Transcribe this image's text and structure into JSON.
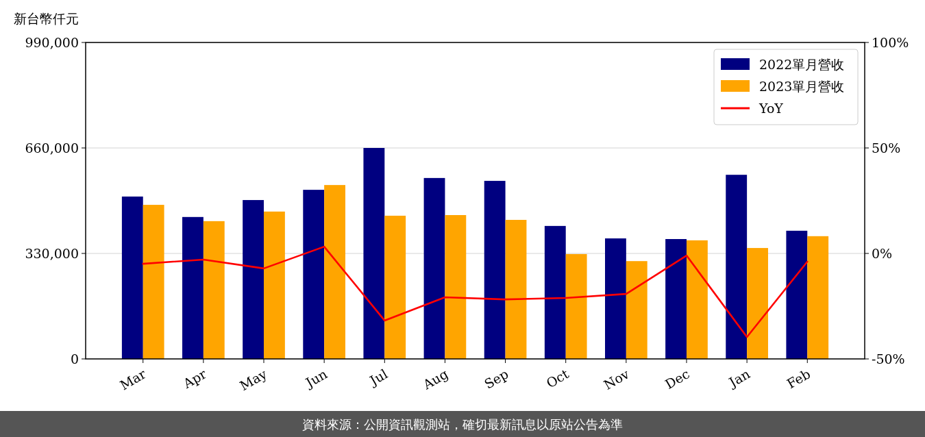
{
  "chart_data": {
    "type": "bar",
    "categories": [
      "Mar",
      "Apr",
      "May",
      "Jun",
      "Jul",
      "Aug",
      "Sep",
      "Oct",
      "Nov",
      "Dec",
      "Jan",
      "Feb"
    ],
    "series": [
      {
        "name": "2022單月營收",
        "color": "#000080",
        "values": [
          508000,
          444000,
          497000,
          529000,
          660000,
          566000,
          557000,
          416000,
          377000,
          375000,
          576000,
          401000
        ]
      },
      {
        "name": "2023單月營收",
        "color": "#ffa500",
        "values": [
          482000,
          431000,
          461000,
          544000,
          448000,
          450000,
          435000,
          328000,
          306000,
          371000,
          347000,
          384000
        ]
      },
      {
        "name": "YoY",
        "type": "line",
        "axis": "y2",
        "color": "#ff0000",
        "values": [
          -4.9,
          -2.9,
          -7.1,
          3.2,
          -31.8,
          -20.8,
          -21.8,
          -21.1,
          -19.2,
          -1.0,
          -39.6,
          -3.9
        ]
      }
    ],
    "ylabel": "新台幣仟元",
    "ylim": [
      0,
      990000
    ],
    "yticks": [
      {
        "value": 0,
        "label": "0"
      },
      {
        "value": 330000,
        "label": "330,000"
      },
      {
        "value": 660000,
        "label": "660,000"
      },
      {
        "value": 990000,
        "label": "990,000"
      }
    ],
    "y2lim": [
      -50,
      100
    ],
    "y2ticks": [
      {
        "value": -50,
        "label": "-50%"
      },
      {
        "value": 0,
        "label": "0%"
      },
      {
        "value": 50,
        "label": "50%"
      },
      {
        "value": 100,
        "label": "100%"
      }
    ],
    "grid": "y",
    "legend": "top right",
    "annotations": [
      "資料來源：公開資訊觀測站，確切最新訊息以原站公告為準"
    ]
  }
}
